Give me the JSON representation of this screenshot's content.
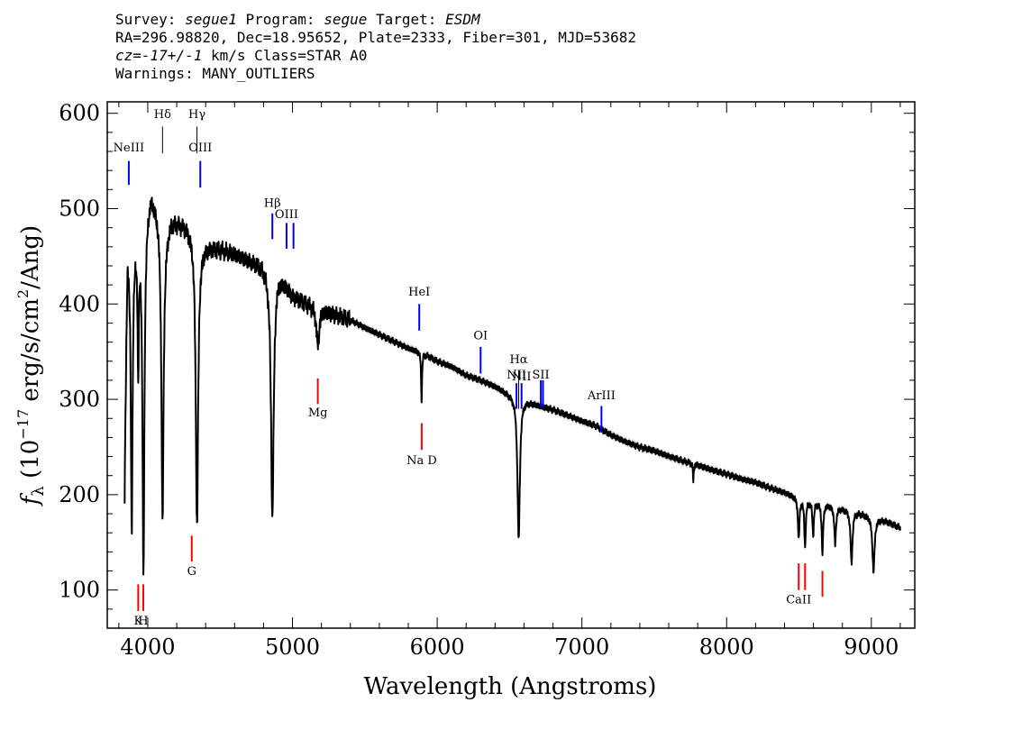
{
  "header": {
    "line1_prefix": "Survey: ",
    "survey": "segue1",
    "line1_mid": " Program: ",
    "program": "segue",
    "line1_mid2": " Target: ",
    "target": "ESDM",
    "line2": "RA=296.98820, Dec=18.95652, Plate=2333, Fiber=301, MJD=53682",
    "line3_prefix": "cz=",
    "redshift": "-17+/-1",
    "line3_suffix": " km/s Class=STAR A0",
    "line4": "Warnings: MANY_OUTLIERS"
  },
  "chart_data": {
    "type": "line",
    "xlabel": "Wavelength (Angstroms)",
    "ylabel": "f_λ (10^-17 erg/s/cm^2/Ang)",
    "ylabel_parts": {
      "f": "f",
      "sub": "λ",
      "pre": " (10",
      "exp1": "−17",
      "mid": " erg/s/cm",
      "exp2": "2",
      "post": "/Ang)"
    },
    "xlim": [
      3720,
      9300
    ],
    "ylim": [
      60,
      612
    ],
    "xticks": [
      4000,
      5000,
      6000,
      7000,
      8000,
      9000
    ],
    "yticks": [
      100,
      200,
      300,
      400,
      500,
      600
    ],
    "line_color": "#000000",
    "error_color": "#aaaaaa",
    "emission_color": "#0000ff",
    "absorption_color": "#ff0000",
    "continuum": [
      [
        3840,
        270
      ],
      [
        3860,
        462
      ],
      [
        3900,
        468
      ],
      [
        3940,
        480
      ],
      [
        3980,
        495
      ],
      [
        4020,
        520
      ],
      [
        4060,
        505
      ],
      [
        4120,
        475
      ],
      [
        4160,
        490
      ],
      [
        4200,
        488
      ],
      [
        4260,
        485
      ],
      [
        4320,
        475
      ],
      [
        4360,
        462
      ],
      [
        4400,
        462
      ],
      [
        4500,
        458
      ],
      [
        4600,
        452
      ],
      [
        4700,
        445
      ],
      [
        4800,
        440
      ],
      [
        4860,
        428
      ],
      [
        4900,
        432
      ],
      [
        4960,
        420
      ],
      [
        5000,
        410
      ],
      [
        5100,
        402
      ],
      [
        5200,
        395
      ],
      [
        5300,
        388
      ],
      [
        5400,
        383
      ],
      [
        5500,
        375
      ],
      [
        5600,
        368
      ],
      [
        5700,
        361
      ],
      [
        5800,
        354
      ],
      [
        5900,
        349
      ],
      [
        6000,
        340
      ],
      [
        6100,
        334
      ],
      [
        6200,
        325
      ],
      [
        6300,
        320
      ],
      [
        6400,
        314
      ],
      [
        6500,
        306
      ],
      [
        6600,
        300
      ],
      [
        6700,
        294
      ],
      [
        6800,
        289
      ],
      [
        6900,
        283
      ],
      [
        7000,
        277
      ],
      [
        7100,
        272
      ],
      [
        7200,
        263
      ],
      [
        7300,
        256
      ],
      [
        7400,
        250
      ],
      [
        7500,
        246
      ],
      [
        7600,
        240
      ],
      [
        7700,
        235
      ],
      [
        7800,
        231
      ],
      [
        7900,
        226
      ],
      [
        8000,
        222
      ],
      [
        8100,
        217
      ],
      [
        8200,
        213
      ],
      [
        8300,
        207
      ],
      [
        8400,
        202
      ],
      [
        8500,
        196
      ],
      [
        8600,
        193
      ],
      [
        8700,
        190
      ],
      [
        8800,
        186
      ],
      [
        8900,
        182
      ],
      [
        9000,
        177
      ],
      [
        9100,
        172
      ],
      [
        9200,
        165
      ]
    ],
    "absorption_profile": [
      {
        "center": 3835,
        "depth": 0.45,
        "width": 6
      },
      {
        "center": 3889,
        "depth": 0.66,
        "width": 7
      },
      {
        "center": 3934,
        "depth": 0.3,
        "width": 5
      },
      {
        "center": 3970,
        "depth": 0.76,
        "width": 8
      },
      {
        "center": 4102,
        "depth": 0.64,
        "width": 9
      },
      {
        "center": 4340,
        "depth": 0.64,
        "width": 10
      },
      {
        "center": 4861,
        "depth": 0.59,
        "width": 11
      },
      {
        "center": 5175,
        "depth": 0.1,
        "width": 12
      },
      {
        "center": 5892,
        "depth": 0.14,
        "width": 4
      },
      {
        "center": 6563,
        "depth": 0.49,
        "width": 10
      },
      {
        "center": 7770,
        "depth": 0.08,
        "width": 3
      },
      {
        "center": 8498,
        "depth": 0.22,
        "width": 6
      },
      {
        "center": 8542,
        "depth": 0.25,
        "width": 6
      },
      {
        "center": 8598,
        "depth": 0.18,
        "width": 6
      },
      {
        "center": 8662,
        "depth": 0.27,
        "width": 6
      },
      {
        "center": 8750,
        "depth": 0.21,
        "width": 7
      },
      {
        "center": 8863,
        "depth": 0.3,
        "width": 8
      },
      {
        "center": 9015,
        "depth": 0.32,
        "width": 9
      }
    ],
    "line_markers": [
      {
        "label": "NeIII",
        "x": 3869,
        "color": "emission",
        "y_top": 550,
        "y_bottom": 525,
        "label_y": 560
      },
      {
        "label": "Hδ",
        "x": 4102,
        "color": "hydrogen",
        "y_top": 586,
        "y_bottom": 558,
        "label_y": 595
      },
      {
        "label": "Hγ",
        "x": 4340,
        "color": "hydrogen",
        "y_top": 586,
        "y_bottom": 558,
        "label_y": 595
      },
      {
        "label": "OIII",
        "x": 4363,
        "color": "emission",
        "y_top": 550,
        "y_bottom": 522,
        "label_y": 560
      },
      {
        "label": "Hβ",
        "x": 4861,
        "color": "emission",
        "y_top": 495,
        "y_bottom": 468,
        "label_y": 502
      },
      {
        "label": "OIII",
        "x": 4959,
        "color": "emission",
        "y_top": 485,
        "y_bottom": 458,
        "label_y": 490
      },
      {
        "label": "",
        "x": 5007,
        "color": "emission",
        "y_top": 485,
        "y_bottom": 458,
        "label_y": 490
      },
      {
        "label": "Mg",
        "x": 5175,
        "color": "absorption",
        "y_top": 322,
        "y_bottom": 295,
        "label_y": 282
      },
      {
        "label": "HeI",
        "x": 5876,
        "color": "emission",
        "y_top": 400,
        "y_bottom": 372,
        "label_y": 409
      },
      {
        "label": "Na D",
        "x": 5893,
        "color": "absorption",
        "y_top": 275,
        "y_bottom": 247,
        "label_y": 232
      },
      {
        "label": "OI",
        "x": 6300,
        "color": "emission",
        "y_top": 355,
        "y_bottom": 327,
        "label_y": 363
      },
      {
        "label": "NII",
        "x": 6548,
        "color": "emission",
        "y_top": 317,
        "y_bottom": 290,
        "label_y": 322
      },
      {
        "label": "Hα",
        "x": 6563,
        "color": "hydrogen",
        "y_top": 330,
        "y_bottom": 290,
        "label_y": 338
      },
      {
        "label": "NII",
        "x": 6583,
        "color": "emission",
        "y_top": 317,
        "y_bottom": 290,
        "label_y": 320
      },
      {
        "label": "SII",
        "x": 6716,
        "color": "emission",
        "y_top": 320,
        "y_bottom": 292,
        "label_y": 322
      },
      {
        "label": "",
        "x": 6731,
        "color": "emission",
        "y_top": 320,
        "y_bottom": 292,
        "label_y": 322
      },
      {
        "label": "ArIII",
        "x": 7135,
        "color": "emission",
        "y_top": 293,
        "y_bottom": 265,
        "label_y": 300
      },
      {
        "label": "K",
        "x": 3934,
        "color": "absorption",
        "y_top": 106,
        "y_bottom": 78,
        "label_y": 64
      },
      {
        "label": "H",
        "x": 3969,
        "color": "absorption",
        "y_top": 106,
        "y_bottom": 78,
        "label_y": 64
      },
      {
        "label": "G",
        "x": 4304,
        "color": "absorption",
        "y_top": 157,
        "y_bottom": 130,
        "label_y": 116
      },
      {
        "label": "CaII",
        "x": 8498,
        "color": "absorption",
        "y_top": 128,
        "y_bottom": 100,
        "label_y": 86
      },
      {
        "label": "",
        "x": 8542,
        "color": "absorption",
        "y_top": 128,
        "y_bottom": 100,
        "label_y": 86
      },
      {
        "label": "",
        "x": 8662,
        "color": "absorption",
        "y_top": 120,
        "y_bottom": 93,
        "label_y": 86
      }
    ]
  }
}
